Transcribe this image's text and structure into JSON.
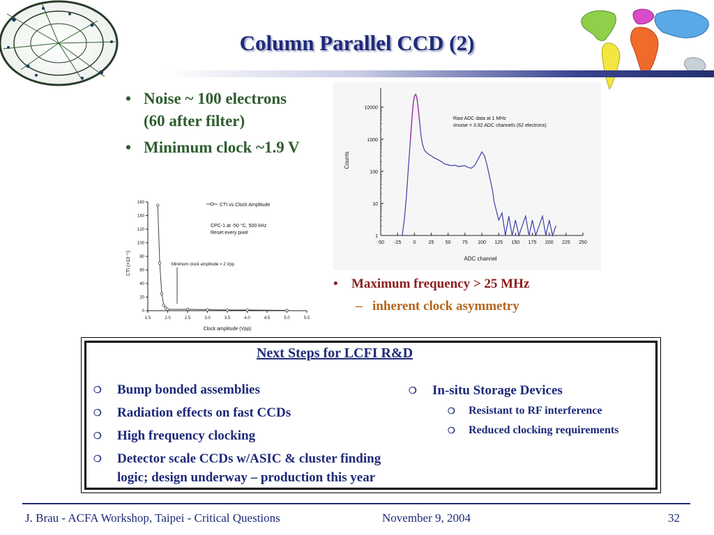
{
  "slide": {
    "title": "Column Parallel CCD (2)",
    "bullets_top": [
      {
        "text": "Noise ~ 100 electrons",
        "cont": "(60 after filter)"
      },
      {
        "text": "Minimum clock ~1.9 V"
      }
    ],
    "bullets_mid": {
      "main": "Maximum frequency > 25 MHz",
      "sub": "inherent clock asymmetry"
    },
    "next_steps": {
      "title": "Next Steps for LCFI R&D",
      "left_items": [
        "Bump bonded assemblies",
        "Radiation effects on fast CCDs",
        "High frequency clocking",
        "Detector scale CCDs w/ASIC & cluster finding",
        "logic; design underway – production this year"
      ],
      "right_main": "In-situ Storage Devices",
      "right_sub": [
        "Resistant to RF interference",
        "Reduced clocking requirements"
      ]
    },
    "footer": {
      "left": "J. Brau - ACFA Workshop, Taipei - Critical Questions",
      "center": "November 9, 2004",
      "right": "32"
    },
    "colors": {
      "title": "#1e2a78",
      "green_text": "#2f5d2f",
      "red_text": "#8b1e1e",
      "orange_text": "#b5651d",
      "histogram": "#3b3fa8",
      "histogram_peak": "#a02aa8"
    }
  },
  "chart_data": [
    {
      "type": "line",
      "xlabel": "Clock amplitude (Vpp)",
      "ylabel": "CTI (×10⁻⁵)",
      "xlim": [
        1.5,
        5.5
      ],
      "ylim": [
        0,
        160
      ],
      "xticks": [
        "1.5",
        "2.0",
        "2.5",
        "3.0",
        "3.5",
        "4.0",
        "4.5",
        "5.0",
        "5.5"
      ],
      "yticks": [
        "0",
        "20",
        "40",
        "60",
        "80",
        "100",
        "120",
        "140",
        "160"
      ],
      "legend": "CTI vs Clock Amplitude",
      "annotations": [
        "CPC-1 at -50 °C, 500 kHz",
        "Reset every pixel",
        "Minimum clock amplitude = 2 Vpp"
      ],
      "series": [
        {
          "name": "CTI vs Clock Amplitude",
          "x": [
            1.75,
            1.8,
            1.85,
            1.9,
            1.95,
            2.0,
            2.5,
            3.0,
            3.5,
            4.0,
            5.0
          ],
          "y": [
            155,
            70,
            25,
            8,
            4,
            2,
            2,
            1.5,
            1,
            1,
            0.5
          ]
        }
      ]
    },
    {
      "type": "line",
      "xlabel": "ADC channel",
      "ylabel": "Counts",
      "log_y": true,
      "xlim": [
        -50,
        250
      ],
      "ylim": [
        1,
        40000
      ],
      "xticks": [
        "-50",
        "-25",
        "0",
        "25",
        "50",
        "75",
        "100",
        "125",
        "150",
        "175",
        "200",
        "225",
        "250"
      ],
      "yticks": [
        "1",
        "10",
        "100",
        "1000",
        "10000"
      ],
      "annotations": [
        "Raw ADC data at 1 MHz",
        "σnoise = 3.92 ADC channels (62 electrons)"
      ],
      "series": [
        {
          "name": "",
          "x": [
            -18,
            -15,
            -12,
            -9,
            -6,
            -4,
            -2,
            0,
            2,
            4,
            6,
            8,
            10,
            12,
            15,
            20,
            25,
            30,
            35,
            40,
            45,
            50,
            55,
            60,
            65,
            70,
            75,
            80,
            85,
            90,
            95,
            100,
            104,
            108,
            112,
            116,
            118,
            120,
            125,
            130,
            135,
            140,
            145,
            150,
            155,
            160,
            165,
            170,
            175,
            180,
            185,
            190,
            195,
            200,
            205,
            210
          ],
          "y": [
            1,
            3,
            15,
            120,
            900,
            3500,
            12000,
            22000,
            25000,
            18000,
            8000,
            3000,
            1200,
            700,
            450,
            350,
            300,
            260,
            230,
            200,
            170,
            160,
            150,
            155,
            140,
            145,
            150,
            130,
            125,
            160,
            250,
            400,
            300,
            150,
            60,
            25,
            12,
            8,
            3,
            5,
            1,
            4,
            1,
            3,
            1,
            2,
            4,
            1,
            3,
            1,
            2,
            4,
            1,
            3,
            1,
            2
          ]
        }
      ]
    }
  ]
}
